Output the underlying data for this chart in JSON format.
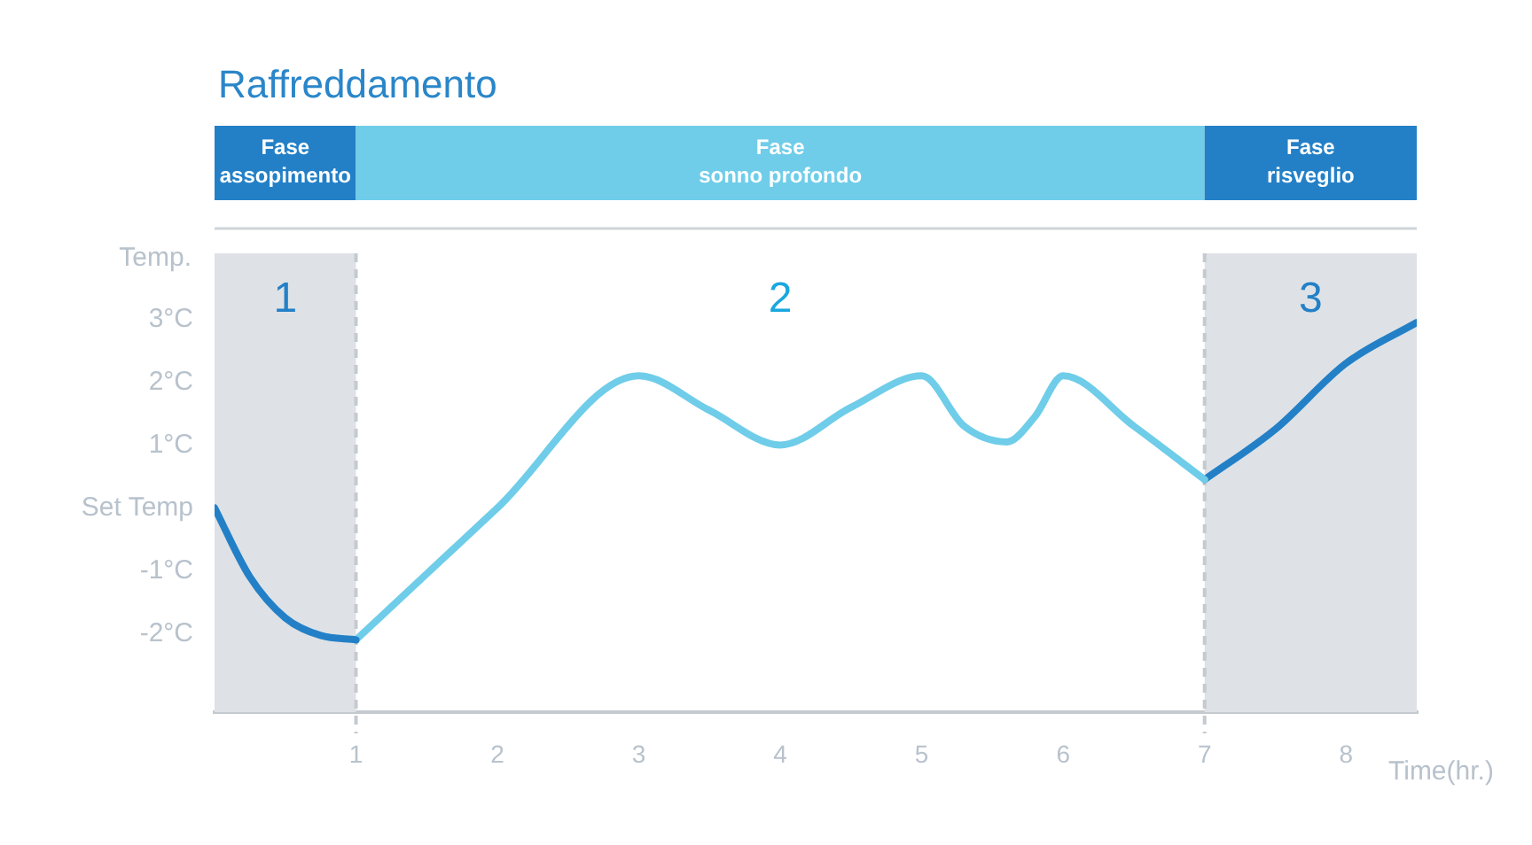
{
  "chart_data": {
    "type": "line",
    "title": "Raffreddamento",
    "xlabel": "Time(hr.)",
    "ylabel": "Temp.",
    "xlim": [
      0,
      8.5
    ],
    "xticks": [
      1,
      2,
      3,
      4,
      5,
      6,
      7,
      8
    ],
    "ylim": [
      -3.25,
      4.05
    ],
    "yticks": [
      {
        "value": -2,
        "label": "-2°C"
      },
      {
        "value": -1,
        "label": "-1°C"
      },
      {
        "value": 0,
        "label": "Set Temp"
      },
      {
        "value": 1,
        "label": "1°C"
      },
      {
        "value": 2,
        "label": "2°C"
      },
      {
        "value": 3,
        "label": "3°C"
      }
    ],
    "series": [
      {
        "color": "#2380c7",
        "x": [
          0,
          0.25,
          0.5,
          0.75,
          1
        ],
        "values": [
          0,
          -1.1,
          -1.75,
          -2.03,
          -2.1
        ]
      },
      {
        "color": "#6fcde9",
        "x": [
          1,
          2,
          3,
          3.5,
          4,
          4.5,
          5,
          5.3,
          5.6,
          5.8,
          6,
          6.5,
          7
        ],
        "values": [
          -2.1,
          0,
          2.1,
          1.55,
          1.0,
          1.6,
          2.1,
          1.3,
          1.05,
          1.45,
          2.1,
          1.3,
          0.45
        ]
      },
      {
        "color": "#2380c7",
        "x": [
          7,
          7.5,
          8,
          8.5
        ],
        "values": [
          0.45,
          1.25,
          2.3,
          2.95
        ]
      }
    ],
    "bands": [
      {
        "axis": "x",
        "from": 0,
        "to": 1,
        "label": "1",
        "color": "#dee2e6"
      },
      {
        "axis": "x",
        "from": 7,
        "to": 8.5,
        "label": "3",
        "color": "#dee2e6"
      }
    ],
    "ref_lines": [
      {
        "axis": "x",
        "value": 1,
        "color": "#c4cad0",
        "line_style": "dashed"
      },
      {
        "axis": "x",
        "value": 7,
        "color": "#c4cad0",
        "line_style": "dashed"
      }
    ],
    "annotations": [
      "Fase\nassopimento",
      "Fase\nsonno profondo",
      "Fase\nrisveglio",
      "2"
    ],
    "grid": false,
    "legend": false,
    "marker": "none",
    "line_style": "solid"
  }
}
